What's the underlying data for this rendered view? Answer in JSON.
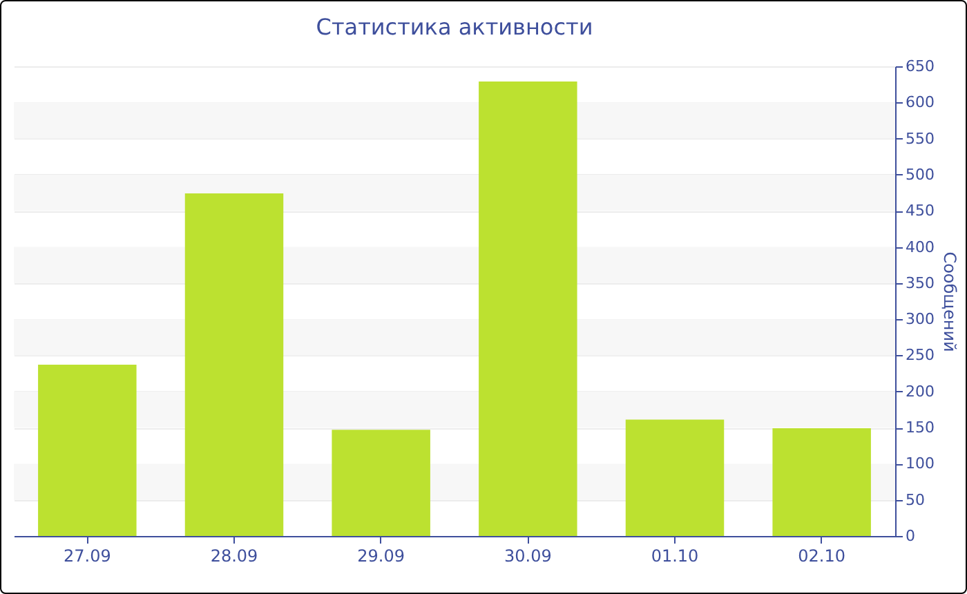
{
  "chart_data": {
    "type": "bar",
    "title": "Статистика активности",
    "ylabel": "Сообщений",
    "categories": [
      "27.09",
      "28.09",
      "29.09",
      "30.09",
      "01.10",
      "02.10"
    ],
    "values": [
      237,
      474,
      147,
      629,
      161,
      149
    ],
    "color": "#bce130",
    "ylim": [
      0,
      650
    ],
    "yticks": [
      0,
      50,
      100,
      150,
      200,
      250,
      300,
      350,
      400,
      450,
      500,
      550,
      600,
      650
    ],
    "grid": "y"
  }
}
